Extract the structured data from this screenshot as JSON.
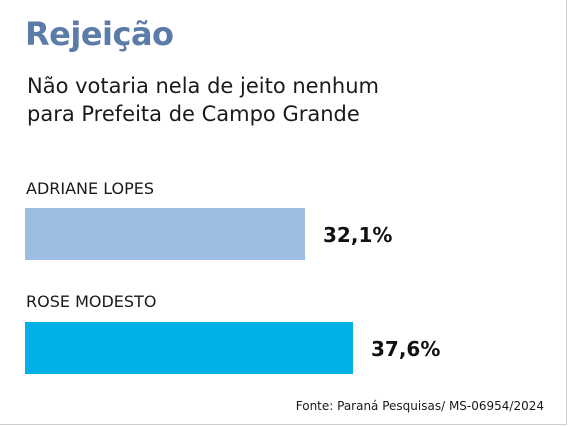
{
  "header": {
    "title": "Rejeição",
    "title_color": "#5b7ba8",
    "subtitle": "Não votaria nela de jeito nenhum\npara Prefeita de Campo Grande"
  },
  "chart_data": {
    "type": "bar",
    "orientation": "horizontal",
    "title": "Não votaria nela de jeito nenhum para Prefeita de Campo Grande",
    "categories": [
      "ADRIANE LOPES",
      "ROSE MODESTO"
    ],
    "values": [
      32.1,
      37.6
    ],
    "value_labels": [
      "32,1%",
      "37,6%"
    ],
    "colors": [
      "#9dbde3",
      "#00b0e8"
    ],
    "xlim": [
      0,
      37.6
    ],
    "grid": false,
    "legend": "none"
  },
  "source": "Fonte: Paraná Pesquisas/ MS-06954/2024"
}
